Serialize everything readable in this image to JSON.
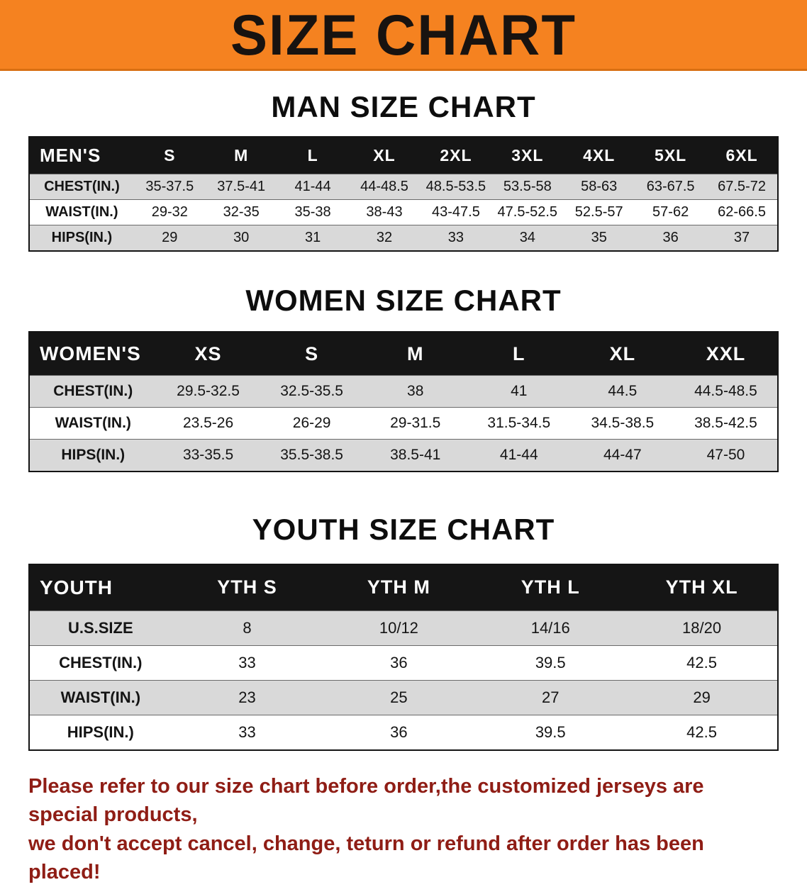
{
  "colors": {
    "banner_bg": "#f58220",
    "header_bg": "#151515",
    "row_alt_bg": "#d9d9d9",
    "notice_color": "#8f1d15"
  },
  "banner": {
    "title": "SIZE CHART"
  },
  "sections": [
    {
      "id": "men",
      "heading": "MAN SIZE CHART",
      "table": {
        "header": [
          "MEN'S",
          "S",
          "M",
          "L",
          "XL",
          "2XL",
          "3XL",
          "4XL",
          "5XL",
          "6XL"
        ],
        "rows": [
          [
            "CHEST(IN.)",
            "35-37.5",
            "37.5-41",
            "41-44",
            "44-48.5",
            "48.5-53.5",
            "53.5-58",
            "58-63",
            "63-67.5",
            "67.5-72"
          ],
          [
            "WAIST(IN.)",
            "29-32",
            "32-35",
            "35-38",
            "38-43",
            "43-47.5",
            "47.5-52.5",
            "52.5-57",
            "57-62",
            "62-66.5"
          ],
          [
            "HIPS(IN.)",
            "29",
            "30",
            "31",
            "32",
            "33",
            "34",
            "35",
            "36",
            "37"
          ]
        ]
      }
    },
    {
      "id": "women",
      "heading": "WOMEN SIZE CHART",
      "table": {
        "header": [
          "WOMEN'S",
          "XS",
          "S",
          "M",
          "L",
          "XL",
          "XXL"
        ],
        "rows": [
          [
            "CHEST(IN.)",
            "29.5-32.5",
            "32.5-35.5",
            "38",
            "41",
            "44.5",
            "44.5-48.5"
          ],
          [
            "WAIST(IN.)",
            "23.5-26",
            "26-29",
            "29-31.5",
            "31.5-34.5",
            "34.5-38.5",
            "38.5-42.5"
          ],
          [
            "HIPS(IN.)",
            "33-35.5",
            "35.5-38.5",
            "38.5-41",
            "41-44",
            "44-47",
            "47-50"
          ]
        ]
      }
    },
    {
      "id": "youth",
      "heading": "YOUTH SIZE CHART",
      "table": {
        "header": [
          "YOUTH",
          "YTH S",
          "YTH M",
          "YTH L",
          "YTH XL"
        ],
        "rows": [
          [
            "U.S.SIZE",
            "8",
            "10/12",
            "14/16",
            "18/20"
          ],
          [
            "CHEST(IN.)",
            "33",
            "36",
            "39.5",
            "42.5"
          ],
          [
            "WAIST(IN.)",
            "23",
            "25",
            "27",
            "29"
          ],
          [
            "HIPS(IN.)",
            "33",
            "36",
            "39.5",
            "42.5"
          ]
        ]
      }
    }
  ],
  "footer": {
    "line1": "Please refer to our size chart before order,the customized jerseys are special products,",
    "line2": "we don't accept cancel, change, teturn or refund after order has been placed!"
  }
}
